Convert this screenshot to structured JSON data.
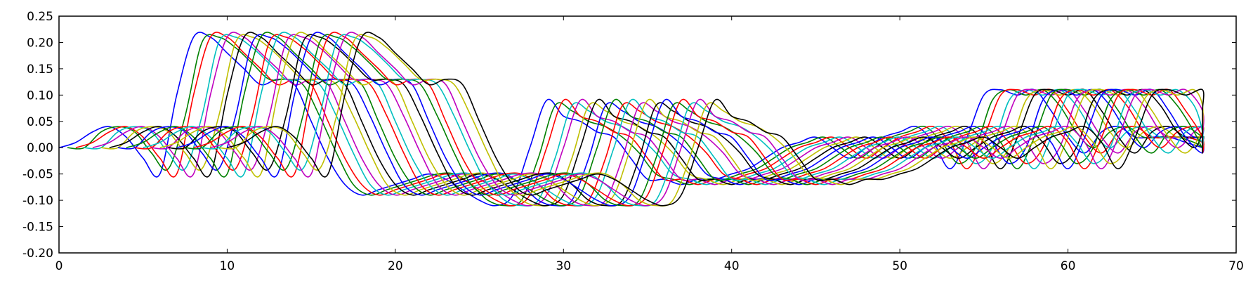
{
  "chart_data": {
    "type": "line",
    "title": "",
    "xlabel": "",
    "ylabel": "",
    "xlim": [
      0,
      70
    ],
    "ylim": [
      -0.2,
      0.25
    ],
    "grid": false,
    "legend": "none",
    "x_ticks": [
      "0",
      "10",
      "20",
      "30",
      "40",
      "50",
      "60",
      "70"
    ],
    "y_ticks": [
      "-0.20",
      "-0.15",
      "-0.10",
      "-0.05",
      "0.00",
      "0.05",
      "0.10",
      "0.15",
      "0.20",
      "0.25"
    ],
    "palette": [
      "#0000ff",
      "#008000",
      "#ff0000",
      "#00bfbf",
      "#bf00bf",
      "#bfbf00",
      "#000000"
    ],
    "x_shift_between_series": 0.5,
    "series_count": 21,
    "x": [
      0,
      1,
      2,
      3,
      4,
      5,
      6,
      7,
      8,
      9,
      10,
      11,
      12,
      13,
      14,
      15,
      16,
      17,
      18,
      19,
      20,
      21,
      22,
      23,
      24,
      25,
      26,
      27,
      28,
      29,
      30,
      31,
      32,
      33,
      34,
      35,
      36,
      37,
      38,
      39,
      40,
      41,
      42,
      43,
      44,
      45,
      46,
      47,
      48,
      49,
      50,
      51,
      52,
      53,
      54,
      55,
      56,
      57,
      58,
      59,
      60,
      61,
      62,
      63,
      64,
      65,
      66,
      67,
      68
    ],
    "series": [
      {
        "values": [
          0.0,
          0.01,
          0.03,
          0.04,
          0.02,
          -0.02,
          -0.05,
          0.1,
          0.21,
          0.21,
          0.18,
          0.15,
          0.12,
          0.13,
          0.12,
          0.05,
          -0.02,
          -0.07,
          -0.09,
          -0.08,
          -0.07,
          -0.06,
          -0.05,
          -0.06,
          -0.08,
          -0.1,
          -0.11,
          -0.09,
          0.0,
          0.09,
          0.06,
          0.05,
          0.03,
          0.02,
          -0.02,
          -0.06,
          -0.06,
          -0.07,
          -0.06,
          -0.06,
          -0.05,
          -0.04,
          -0.02,
          0.0,
          0.01,
          0.02,
          0.0,
          -0.02,
          0.0,
          0.02,
          0.03,
          0.04,
          0.01,
          -0.04,
          0.02,
          0.1,
          0.11,
          0.1,
          0.11,
          0.07,
          0.02,
          -0.01,
          0.03,
          0.04,
          0.02,
          0.02,
          0.02,
          0.01,
          0.0
        ]
      },
      {
        "values": [
          0.0,
          0.0,
          0.03,
          0.04,
          0.03,
          -0.01,
          -0.04,
          0.06,
          0.2,
          0.21,
          0.19,
          0.16,
          0.13,
          0.13,
          0.12,
          0.06,
          -0.01,
          -0.07,
          -0.09,
          -0.08,
          -0.07,
          -0.06,
          -0.05,
          -0.05,
          -0.07,
          -0.1,
          -0.11,
          -0.1,
          -0.02,
          0.08,
          0.07,
          0.05,
          0.04,
          0.02,
          -0.01,
          -0.05,
          -0.06,
          -0.07,
          -0.06,
          -0.06,
          -0.05,
          -0.04,
          -0.02,
          0.0,
          0.01,
          0.02,
          0.0,
          -0.02,
          0.0,
          0.02,
          0.03,
          0.04,
          0.01,
          -0.03,
          0.0,
          0.09,
          0.11,
          0.1,
          0.11,
          0.08,
          0.03,
          0.0,
          0.03,
          0.04,
          0.02,
          0.02,
          0.02,
          0.01,
          0.0
        ]
      }
    ]
  }
}
